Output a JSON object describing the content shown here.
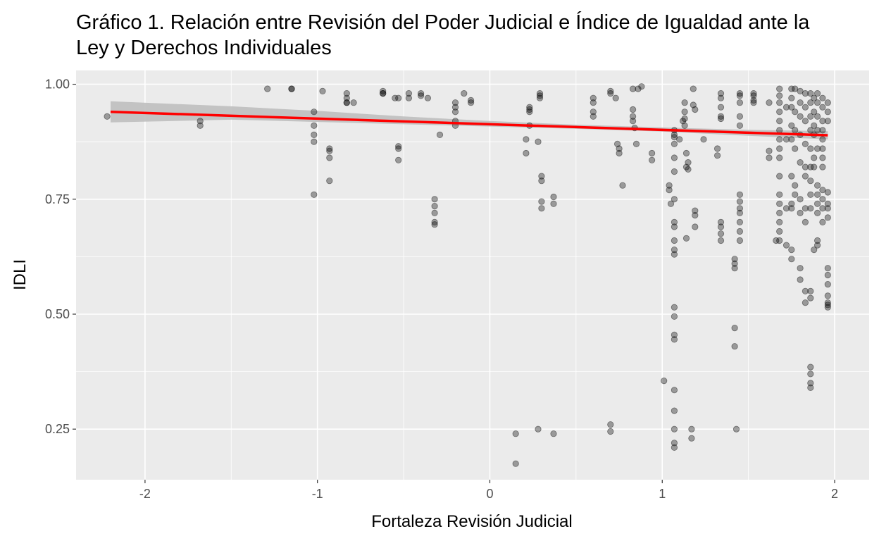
{
  "chart_data": {
    "type": "scatter",
    "title_lines": [
      "Gráfico 1. Relación entre Revisión del Poder Judicial e Índice de Igualdad ante la",
      "Ley y Derechos Individuales"
    ],
    "xlabel": "Fortaleza Revisión Judicial",
    "ylabel": "IDLI",
    "xlim": [
      -2.4,
      2.2
    ],
    "ylim": [
      0.14,
      1.03
    ],
    "x_ticks": [
      -2,
      -1,
      0,
      1,
      2
    ],
    "x_tick_labels": [
      "-2",
      "-1",
      "0",
      "1",
      "2"
    ],
    "y_ticks": [
      0.25,
      0.5,
      0.75,
      1.0
    ],
    "y_tick_labels": [
      "0.25",
      "0.50",
      "0.75",
      "1.00"
    ],
    "grid": true,
    "trend_line": {
      "color": "#ff0000",
      "x": [
        -2.2,
        1.96
      ],
      "y": [
        0.94,
        0.889
      ]
    },
    "confidence_band": {
      "color": "#bfbfbf",
      "x": [
        -2.2,
        -1.5,
        -1.0,
        -0.5,
        0.0,
        0.5,
        1.0,
        1.5,
        1.96
      ],
      "lower": [
        0.917,
        0.923,
        0.918,
        0.913,
        0.908,
        0.903,
        0.897,
        0.888,
        0.88
      ],
      "upper": [
        0.963,
        0.952,
        0.942,
        0.93,
        0.92,
        0.912,
        0.906,
        0.901,
        0.898
      ]
    },
    "point_color": "#000000",
    "point_opacity": 0.35,
    "points": [
      [
        -2.22,
        0.93
      ],
      [
        -1.68,
        0.91
      ],
      [
        -1.68,
        0.92
      ],
      [
        -1.29,
        0.99
      ],
      [
        -1.15,
        0.99
      ],
      [
        -1.15,
        0.99
      ],
      [
        -1.02,
        0.94
      ],
      [
        -1.02,
        0.91
      ],
      [
        -1.02,
        0.89
      ],
      [
        -1.02,
        0.875
      ],
      [
        -1.02,
        0.76
      ],
      [
        -0.97,
        0.985
      ],
      [
        -0.93,
        0.86
      ],
      [
        -0.93,
        0.855
      ],
      [
        -0.93,
        0.84
      ],
      [
        -0.93,
        0.79
      ],
      [
        -0.83,
        0.98
      ],
      [
        -0.83,
        0.97
      ],
      [
        -0.83,
        0.96
      ],
      [
        -0.83,
        0.96
      ],
      [
        -0.79,
        0.96
      ],
      [
        -0.62,
        0.985
      ],
      [
        -0.62,
        0.98
      ],
      [
        -0.62,
        0.98
      ],
      [
        -0.55,
        0.97
      ],
      [
        -0.53,
        0.97
      ],
      [
        -0.53,
        0.865
      ],
      [
        -0.53,
        0.86
      ],
      [
        -0.53,
        0.835
      ],
      [
        -0.47,
        0.98
      ],
      [
        -0.47,
        0.97
      ],
      [
        -0.4,
        0.98
      ],
      [
        -0.4,
        0.975
      ],
      [
        -0.36,
        0.97
      ],
      [
        -0.32,
        0.75
      ],
      [
        -0.32,
        0.735
      ],
      [
        -0.32,
        0.72
      ],
      [
        -0.32,
        0.7
      ],
      [
        -0.32,
        0.695
      ],
      [
        -0.29,
        0.89
      ],
      [
        -0.2,
        0.96
      ],
      [
        -0.2,
        0.95
      ],
      [
        -0.2,
        0.94
      ],
      [
        -0.2,
        0.92
      ],
      [
        -0.2,
        0.91
      ],
      [
        -0.15,
        0.98
      ],
      [
        -0.11,
        0.965
      ],
      [
        -0.11,
        0.96
      ],
      [
        0.15,
        0.24
      ],
      [
        0.15,
        0.175
      ],
      [
        0.21,
        0.88
      ],
      [
        0.21,
        0.85
      ],
      [
        0.23,
        0.95
      ],
      [
        0.23,
        0.945
      ],
      [
        0.23,
        0.94
      ],
      [
        0.23,
        0.91
      ],
      [
        0.28,
        0.25
      ],
      [
        0.28,
        0.875
      ],
      [
        0.29,
        0.98
      ],
      [
        0.29,
        0.975
      ],
      [
        0.29,
        0.97
      ],
      [
        0.3,
        0.8
      ],
      [
        0.3,
        0.79
      ],
      [
        0.3,
        0.745
      ],
      [
        0.3,
        0.73
      ],
      [
        0.37,
        0.755
      ],
      [
        0.37,
        0.74
      ],
      [
        0.37,
        0.24
      ],
      [
        0.6,
        0.97
      ],
      [
        0.6,
        0.96
      ],
      [
        0.6,
        0.94
      ],
      [
        0.6,
        0.93
      ],
      [
        0.7,
        0.985
      ],
      [
        0.7,
        0.98
      ],
      [
        0.7,
        0.26
      ],
      [
        0.7,
        0.245
      ],
      [
        0.73,
        0.97
      ],
      [
        0.74,
        0.87
      ],
      [
        0.75,
        0.86
      ],
      [
        0.75,
        0.85
      ],
      [
        0.77,
        0.78
      ],
      [
        0.83,
        0.99
      ],
      [
        0.83,
        0.945
      ],
      [
        0.83,
        0.93
      ],
      [
        0.83,
        0.92
      ],
      [
        0.84,
        0.905
      ],
      [
        0.85,
        0.87
      ],
      [
        0.86,
        0.99
      ],
      [
        0.88,
        0.995
      ],
      [
        0.94,
        0.85
      ],
      [
        0.94,
        0.835
      ],
      [
        1.01,
        0.355
      ],
      [
        1.04,
        0.78
      ],
      [
        1.04,
        0.77
      ],
      [
        1.05,
        0.74
      ],
      [
        1.07,
        0.9
      ],
      [
        1.07,
        0.89
      ],
      [
        1.07,
        0.885
      ],
      [
        1.07,
        0.87
      ],
      [
        1.07,
        0.84
      ],
      [
        1.07,
        0.81
      ],
      [
        1.07,
        0.75
      ],
      [
        1.07,
        0.7
      ],
      [
        1.07,
        0.69
      ],
      [
        1.07,
        0.66
      ],
      [
        1.07,
        0.64
      ],
      [
        1.07,
        0.63
      ],
      [
        1.07,
        0.515
      ],
      [
        1.07,
        0.495
      ],
      [
        1.07,
        0.455
      ],
      [
        1.07,
        0.445
      ],
      [
        1.07,
        0.335
      ],
      [
        1.07,
        0.29
      ],
      [
        1.07,
        0.25
      ],
      [
        1.07,
        0.22
      ],
      [
        1.07,
        0.21
      ],
      [
        1.1,
        0.88
      ],
      [
        1.12,
        0.92
      ],
      [
        1.13,
        0.96
      ],
      [
        1.13,
        0.94
      ],
      [
        1.13,
        0.925
      ],
      [
        1.13,
        0.91
      ],
      [
        1.14,
        0.85
      ],
      [
        1.14,
        0.82
      ],
      [
        1.14,
        0.665
      ],
      [
        1.15,
        0.83
      ],
      [
        1.15,
        0.815
      ],
      [
        1.17,
        0.25
      ],
      [
        1.17,
        0.23
      ],
      [
        1.18,
        0.99
      ],
      [
        1.18,
        0.955
      ],
      [
        1.19,
        0.945
      ],
      [
        1.19,
        0.725
      ],
      [
        1.19,
        0.715
      ],
      [
        1.19,
        0.69
      ],
      [
        1.24,
        0.88
      ],
      [
        1.32,
        0.86
      ],
      [
        1.32,
        0.845
      ],
      [
        1.34,
        0.98
      ],
      [
        1.34,
        0.97
      ],
      [
        1.34,
        0.95
      ],
      [
        1.34,
        0.93
      ],
      [
        1.34,
        0.925
      ],
      [
        1.34,
        0.7
      ],
      [
        1.34,
        0.69
      ],
      [
        1.34,
        0.675
      ],
      [
        1.34,
        0.66
      ],
      [
        1.42,
        0.62
      ],
      [
        1.42,
        0.61
      ],
      [
        1.42,
        0.6
      ],
      [
        1.42,
        0.47
      ],
      [
        1.42,
        0.43
      ],
      [
        1.43,
        0.25
      ],
      [
        1.45,
        0.98
      ],
      [
        1.45,
        0.975
      ],
      [
        1.45,
        0.96
      ],
      [
        1.45,
        0.93
      ],
      [
        1.45,
        0.91
      ],
      [
        1.45,
        0.76
      ],
      [
        1.45,
        0.745
      ],
      [
        1.45,
        0.73
      ],
      [
        1.45,
        0.72
      ],
      [
        1.45,
        0.7
      ],
      [
        1.45,
        0.68
      ],
      [
        1.45,
        0.66
      ],
      [
        1.53,
        0.98
      ],
      [
        1.53,
        0.975
      ],
      [
        1.53,
        0.965
      ],
      [
        1.53,
        0.96
      ],
      [
        1.62,
        0.96
      ],
      [
        1.62,
        0.855
      ],
      [
        1.62,
        0.84
      ],
      [
        1.66,
        0.66
      ],
      [
        1.68,
        0.99
      ],
      [
        1.68,
        0.975
      ],
      [
        1.68,
        0.96
      ],
      [
        1.68,
        0.94
      ],
      [
        1.68,
        0.92
      ],
      [
        1.68,
        0.9
      ],
      [
        1.68,
        0.88
      ],
      [
        1.68,
        0.86
      ],
      [
        1.68,
        0.84
      ],
      [
        1.68,
        0.8
      ],
      [
        1.68,
        0.76
      ],
      [
        1.68,
        0.74
      ],
      [
        1.68,
        0.72
      ],
      [
        1.68,
        0.7
      ],
      [
        1.68,
        0.68
      ],
      [
        1.68,
        0.66
      ],
      [
        1.72,
        0.95
      ],
      [
        1.72,
        0.88
      ],
      [
        1.72,
        0.73
      ],
      [
        1.72,
        0.65
      ],
      [
        1.75,
        0.99
      ],
      [
        1.75,
        0.97
      ],
      [
        1.75,
        0.95
      ],
      [
        1.75,
        0.91
      ],
      [
        1.75,
        0.88
      ],
      [
        1.75,
        0.8
      ],
      [
        1.75,
        0.74
      ],
      [
        1.75,
        0.73
      ],
      [
        1.75,
        0.64
      ],
      [
        1.75,
        0.62
      ],
      [
        1.77,
        0.99
      ],
      [
        1.77,
        0.94
      ],
      [
        1.77,
        0.9
      ],
      [
        1.77,
        0.86
      ],
      [
        1.77,
        0.78
      ],
      [
        1.77,
        0.76
      ],
      [
        1.8,
        0.985
      ],
      [
        1.8,
        0.96
      ],
      [
        1.8,
        0.93
      ],
      [
        1.8,
        0.89
      ],
      [
        1.8,
        0.83
      ],
      [
        1.8,
        0.75
      ],
      [
        1.8,
        0.72
      ],
      [
        1.8,
        0.6
      ],
      [
        1.8,
        0.575
      ],
      [
        1.83,
        0.98
      ],
      [
        1.83,
        0.95
      ],
      [
        1.83,
        0.92
      ],
      [
        1.83,
        0.87
      ],
      [
        1.83,
        0.82
      ],
      [
        1.83,
        0.8
      ],
      [
        1.83,
        0.73
      ],
      [
        1.83,
        0.7
      ],
      [
        1.83,
        0.55
      ],
      [
        1.83,
        0.525
      ],
      [
        1.86,
        0.98
      ],
      [
        1.86,
        0.96
      ],
      [
        1.86,
        0.93
      ],
      [
        1.86,
        0.9
      ],
      [
        1.86,
        0.86
      ],
      [
        1.86,
        0.82
      ],
      [
        1.86,
        0.79
      ],
      [
        1.86,
        0.76
      ],
      [
        1.86,
        0.73
      ],
      [
        1.86,
        0.55
      ],
      [
        1.86,
        0.535
      ],
      [
        1.86,
        0.385
      ],
      [
        1.86,
        0.37
      ],
      [
        1.86,
        0.35
      ],
      [
        1.86,
        0.34
      ],
      [
        1.88,
        0.97
      ],
      [
        1.88,
        0.94
      ],
      [
        1.88,
        0.91
      ],
      [
        1.88,
        0.89
      ],
      [
        1.88,
        0.84
      ],
      [
        1.88,
        0.82
      ],
      [
        1.88,
        0.64
      ],
      [
        1.9,
        0.98
      ],
      [
        1.9,
        0.96
      ],
      [
        1.9,
        0.93
      ],
      [
        1.9,
        0.9
      ],
      [
        1.9,
        0.86
      ],
      [
        1.9,
        0.78
      ],
      [
        1.9,
        0.76
      ],
      [
        1.9,
        0.74
      ],
      [
        1.9,
        0.72
      ],
      [
        1.9,
        0.66
      ],
      [
        1.9,
        0.65
      ],
      [
        1.93,
        0.97
      ],
      [
        1.93,
        0.95
      ],
      [
        1.93,
        0.92
      ],
      [
        1.93,
        0.9
      ],
      [
        1.93,
        0.88
      ],
      [
        1.93,
        0.86
      ],
      [
        1.93,
        0.84
      ],
      [
        1.93,
        0.82
      ],
      [
        1.93,
        0.77
      ],
      [
        1.93,
        0.75
      ],
      [
        1.93,
        0.73
      ],
      [
        1.93,
        0.7
      ],
      [
        1.96,
        0.96
      ],
      [
        1.96,
        0.94
      ],
      [
        1.96,
        0.92
      ],
      [
        1.96,
        0.765
      ],
      [
        1.96,
        0.74
      ],
      [
        1.96,
        0.73
      ],
      [
        1.96,
        0.71
      ],
      [
        1.96,
        0.6
      ],
      [
        1.96,
        0.585
      ],
      [
        1.96,
        0.565
      ],
      [
        1.96,
        0.54
      ],
      [
        1.96,
        0.525
      ],
      [
        1.96,
        0.52
      ],
      [
        1.96,
        0.515
      ]
    ]
  }
}
